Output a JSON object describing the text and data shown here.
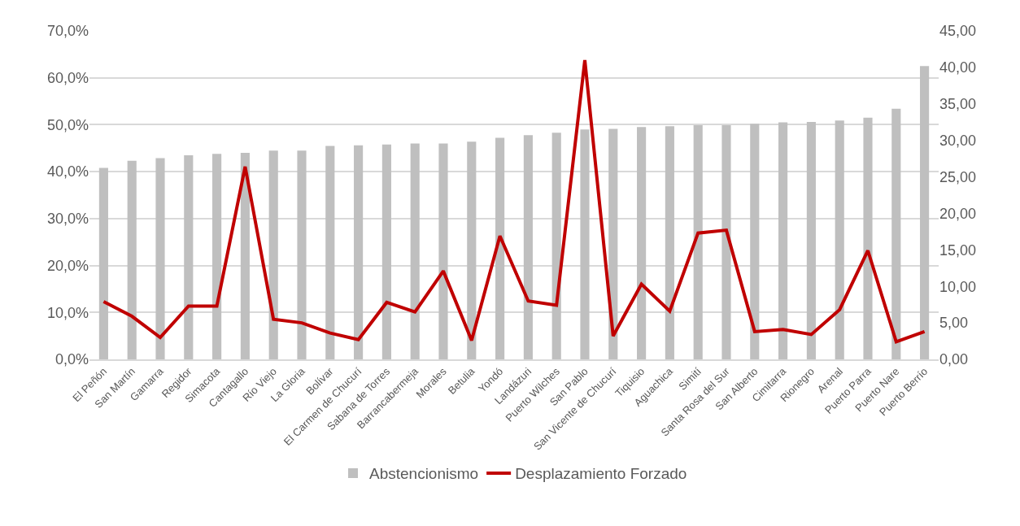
{
  "chart_data": {
    "type": "bar",
    "categories": [
      "El Peñón",
      "San Martín",
      "Gamarra",
      "Regidor",
      "Simacota",
      "Cantagallo",
      "Río Viejo",
      "La Gloria",
      "Bolívar",
      "El Carmen de Chucurí",
      "Sabana de Torres",
      "Barrancabermeja",
      "Morales",
      "Betulia",
      "Yondó",
      "Landázuri",
      "Puerto Wilches",
      "San Pablo",
      "San Vicente de Chucurí",
      "Tiquisio",
      "Aguachica",
      "Simití",
      "Santa Rosa del Sur",
      "San Alberto",
      "Cimitarra",
      "Rionegro",
      "Arenal",
      "Puerto Parra",
      "Puerto Nare",
      "Puerto Berrío"
    ],
    "series": [
      {
        "name": "Abstencionismo",
        "color": "#bfbfbf",
        "values": [
          40.8,
          42.3,
          42.9,
          43.5,
          43.8,
          44.0,
          44.5,
          44.5,
          45.5,
          45.6,
          45.8,
          46.0,
          46.0,
          46.4,
          47.2,
          47.8,
          48.3,
          49.0,
          49.1,
          49.5,
          49.7,
          49.9,
          49.9,
          50.2,
          50.5,
          50.6,
          50.9,
          51.5,
          53.4,
          62.5
        ]
      },
      {
        "name": "Desplazamiento Forzado",
        "type": "line",
        "axis": "y2",
        "color": "#c00000",
        "values": [
          7.9,
          5.9,
          3.0,
          7.3,
          7.3,
          26.4,
          5.5,
          5.0,
          3.6,
          2.7,
          7.8,
          6.5,
          12.1,
          2.6,
          16.9,
          8.0,
          7.4,
          41.0,
          3.2,
          10.3,
          6.6,
          17.3,
          17.7,
          3.8,
          4.1,
          3.4,
          6.8,
          14.9,
          2.4,
          3.8
        ]
      }
    ],
    "ylim": [
      0,
      70
    ],
    "yticks": [
      {
        "value": 0,
        "label": "0,0%"
      },
      {
        "value": 10,
        "label": "10,0%"
      },
      {
        "value": 20,
        "label": "20,0%"
      },
      {
        "value": 30,
        "label": "30,0%"
      },
      {
        "value": 40,
        "label": "40,0%"
      },
      {
        "value": 50,
        "label": "50,0%"
      },
      {
        "value": 60,
        "label": "60,0%"
      },
      {
        "value": 70,
        "label": "70,0%"
      }
    ],
    "y2lim": [
      0,
      45
    ],
    "y2ticks": [
      {
        "value": 0,
        "label": "0,00"
      },
      {
        "value": 5,
        "label": "5,00"
      },
      {
        "value": 10,
        "label": "10,00"
      },
      {
        "value": 15,
        "label": "15,00"
      },
      {
        "value": 20,
        "label": "20,00"
      },
      {
        "value": 25,
        "label": "25,00"
      },
      {
        "value": 30,
        "label": "30,00"
      },
      {
        "value": 35,
        "label": "35,00"
      },
      {
        "value": 40,
        "label": "40,00"
      },
      {
        "value": 45,
        "label": "45,00"
      }
    ],
    "grid": "y",
    "legend": "bottom",
    "line_style": "solid",
    "marker": "none"
  }
}
